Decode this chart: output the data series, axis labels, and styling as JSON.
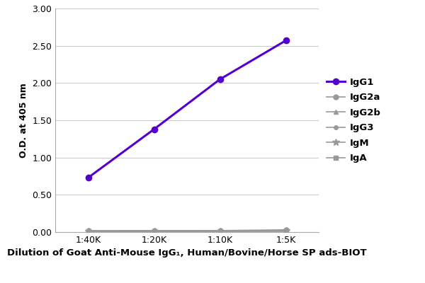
{
  "x_labels": [
    "1:40K",
    "1:20K",
    "1:10K",
    "1:5K"
  ],
  "x_values": [
    1,
    2,
    3,
    4
  ],
  "series": [
    {
      "label": "IgG1",
      "y": [
        0.73,
        1.38,
        2.05,
        2.57
      ],
      "color": "#5500cc",
      "marker": "o",
      "linewidth": 2.2,
      "markersize": 6,
      "zorder": 5
    },
    {
      "label": "IgG2a",
      "y": [
        0.02,
        0.02,
        0.02,
        0.03
      ],
      "color": "#999999",
      "marker": "o",
      "linewidth": 1.2,
      "markersize": 5,
      "zorder": 4
    },
    {
      "label": "IgG2b",
      "y": [
        0.01,
        0.01,
        0.015,
        0.02
      ],
      "color": "#999999",
      "marker": "^",
      "linewidth": 1.2,
      "markersize": 5,
      "zorder": 3
    },
    {
      "label": "IgG3",
      "y": [
        0.01,
        0.015,
        0.02,
        0.02
      ],
      "color": "#999999",
      "marker": "o",
      "linewidth": 1.2,
      "markersize": 4,
      "zorder": 2
    },
    {
      "label": "IgM",
      "y": [
        0.01,
        0.01,
        0.01,
        0.015
      ],
      "color": "#999999",
      "marker": "*",
      "linewidth": 1.2,
      "markersize": 7,
      "zorder": 1
    },
    {
      "label": "IgA",
      "y": [
        0.005,
        0.005,
        0.005,
        0.005
      ],
      "color": "#999999",
      "marker": "s",
      "linewidth": 1.2,
      "markersize": 5,
      "zorder": 0
    }
  ],
  "ylabel": "O.D. at 405 nm",
  "xlabel": "Dilution of Goat Anti-Mouse IgG₁, Human/Bovine/Horse SP ads-BIOT",
  "ylim": [
    0.0,
    3.0
  ],
  "yticks": [
    0.0,
    0.5,
    1.0,
    1.5,
    2.0,
    2.5,
    3.0
  ],
  "background_color": "#ffffff",
  "grid_color": "#cccccc",
  "legend_fontsize": 9.5,
  "axis_fontsize": 9,
  "xlabel_fontsize": 9.5
}
